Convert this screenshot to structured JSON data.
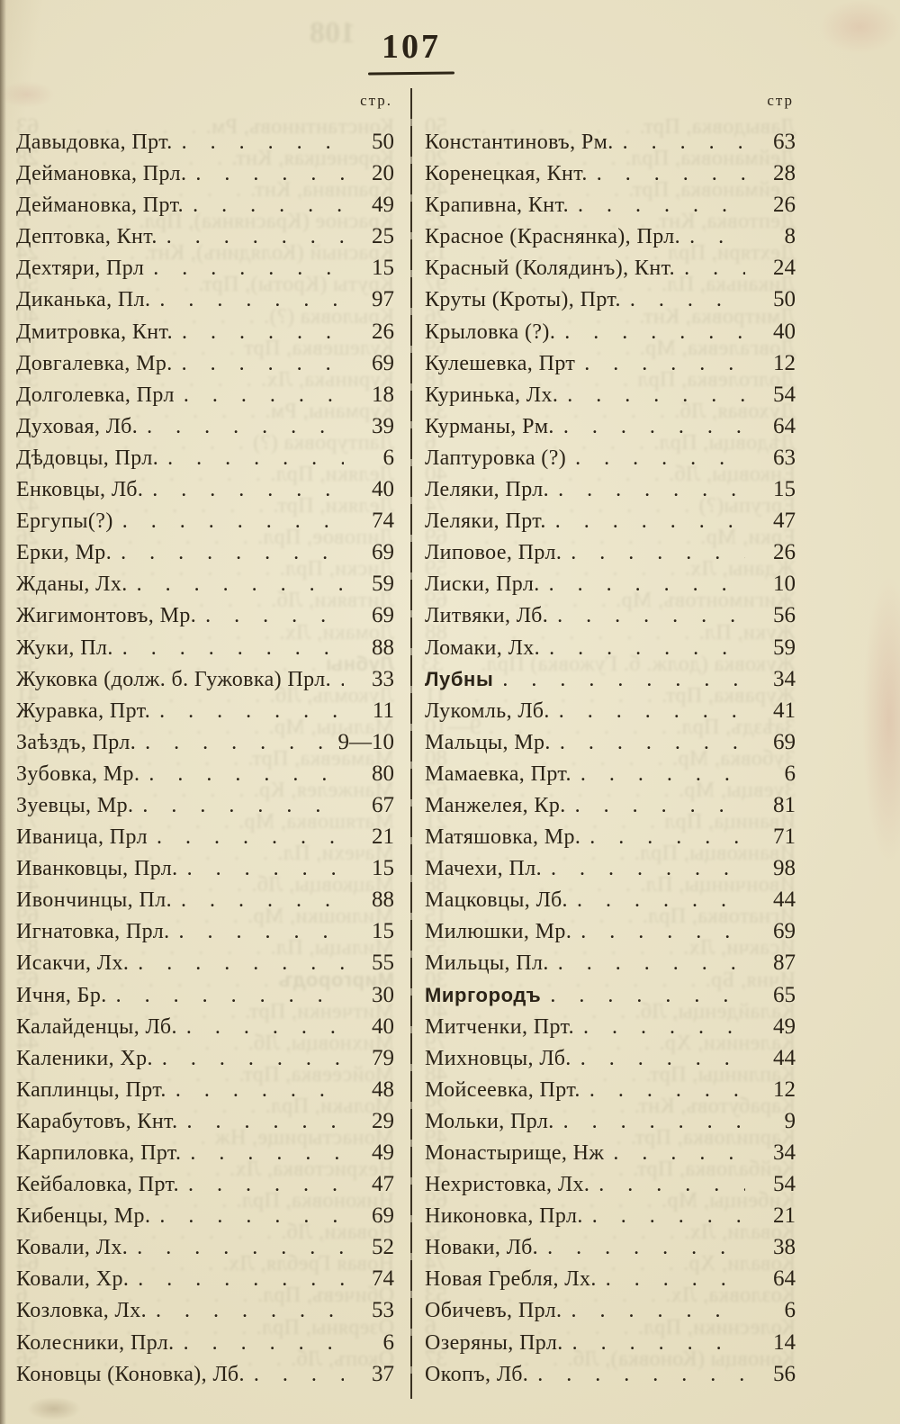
{
  "page": {
    "number": "107",
    "show_through_page_number": "108"
  },
  "colors": {
    "paper": "#e8e1c5",
    "ink": "#2b2317"
  },
  "columns": {
    "left": {
      "header": "стр.",
      "entries": [
        {
          "name": "Давыдовка, Прт.",
          "page": "50"
        },
        {
          "name": "Деймановка, Прл.",
          "page": "20"
        },
        {
          "name": "Деймановка, Прт.",
          "page": "49"
        },
        {
          "name": "Дептовка, Кнт.",
          "page": "25"
        },
        {
          "name": "Дехтяри, Прл",
          "page": "15"
        },
        {
          "name": "Диканька, Пл.",
          "page": "97"
        },
        {
          "name": "Дмитровка, Кнт.",
          "page": "26"
        },
        {
          "name": "Довгалевка, Мр.",
          "page": "69"
        },
        {
          "name": "Долголевка, Прл",
          "page": "18"
        },
        {
          "name": "Духовая, Лб.",
          "page": "39"
        },
        {
          "name": "Дѣдовцы, Прл.",
          "page": "6"
        },
        {
          "name": "Енковцы, Лб.",
          "page": "40"
        },
        {
          "name": "Ергупы(?)",
          "page": "74"
        },
        {
          "name": "Ерки, Мр.",
          "page": "69"
        },
        {
          "name": "Жданы, Лх.",
          "page": "59"
        },
        {
          "name": "Жигимонтовъ, Мр.",
          "page": "69"
        },
        {
          "name": "Жуки, Пл.",
          "page": "88"
        },
        {
          "name": "Жуковка (долж. б. Гужовка) Прл.",
          "page": "33"
        },
        {
          "name": "Журавка, Прт.",
          "page": "11"
        },
        {
          "name": "Заѣздъ, Прл.",
          "page": "9—10"
        },
        {
          "name": "Зубовка, Мр.",
          "page": "80"
        },
        {
          "name": "Зуевцы, Мр.",
          "page": "67"
        },
        {
          "name": "Иваница, Прл",
          "page": "21"
        },
        {
          "name": "Иванковцы, Прл.",
          "page": "15"
        },
        {
          "name": "Ивончинцы, Пл.",
          "page": "88"
        },
        {
          "name": "Игнатовка, Прл.",
          "page": "15"
        },
        {
          "name": "Исакчи, Лх.",
          "page": "55"
        },
        {
          "name": "Ичня, Бр.",
          "page": "30"
        },
        {
          "name": "Калайденцы, Лб.",
          "page": "40"
        },
        {
          "name": "Каленики, Хр.",
          "page": "79"
        },
        {
          "name": "Каплинцы, Прт.",
          "page": "48"
        },
        {
          "name": "Карабутовъ, Кнт.",
          "page": "29"
        },
        {
          "name": "Карпиловка, Прт.",
          "page": "49"
        },
        {
          "name": "Кейбаловка, Прт.",
          "page": "47"
        },
        {
          "name": "Кибенцы, Мр.",
          "page": "69"
        },
        {
          "name": "Ковали, Лх.",
          "page": "52"
        },
        {
          "name": "Ковали, Хр.",
          "page": "74"
        },
        {
          "name": "Козловка, Лх.",
          "page": "53"
        },
        {
          "name": "Колесники, Прл.",
          "page": "6"
        },
        {
          "name": "Коновцы (Коновка), Лб.",
          "page": "37"
        }
      ]
    },
    "right": {
      "header": "стр",
      "entries": [
        {
          "name": "Константиновъ, Рм.",
          "page": "63"
        },
        {
          "name": "Коренецкая, Кнт.",
          "page": "28"
        },
        {
          "name": "Крапивна, Кнт.",
          "page": "26"
        },
        {
          "name": "Красное (Краснянка), Прл.",
          "page": "8"
        },
        {
          "name": "Красный (Колядинъ), Кнт.",
          "page": "24"
        },
        {
          "name": "Круты (Кроты), Прт.",
          "page": "50"
        },
        {
          "name": "Крыловка (?).",
          "page": "40"
        },
        {
          "name": "Кулешевка, Прт",
          "page": "12"
        },
        {
          "name": "Куринька, Лх.",
          "page": "54"
        },
        {
          "name": "Курманы, Рм.",
          "page": "64"
        },
        {
          "name": "Лаптуровка (?)",
          "page": "63"
        },
        {
          "name": "Леляки, Прл.",
          "page": "15"
        },
        {
          "name": "Леляки, Прт.",
          "page": "47"
        },
        {
          "name": "Липовое, Прл.",
          "page": "26"
        },
        {
          "name": "Лиски, Прл.",
          "page": "10"
        },
        {
          "name": "Литвяки, Лб.",
          "page": "56"
        },
        {
          "name": "Ломаки, Лх.",
          "page": "59"
        },
        {
          "name": "Лубны",
          "page": "34",
          "bold": true
        },
        {
          "name": "Лукомль, Лб.",
          "page": "41"
        },
        {
          "name": "Мальцы, Мр.",
          "page": "69"
        },
        {
          "name": "Мамаевка, Прт.",
          "page": "6"
        },
        {
          "name": "Манжелея, Кр.",
          "page": "81"
        },
        {
          "name": "Матяшовка, Мр.",
          "page": "71"
        },
        {
          "name": "Мачехи, Пл.",
          "page": "98"
        },
        {
          "name": "Мацковцы, Лб.",
          "page": "44"
        },
        {
          "name": "Милюшки, Мр.",
          "page": "69"
        },
        {
          "name": "Мильцы, Пл.",
          "page": "87"
        },
        {
          "name": "Миргородъ",
          "page": "65",
          "bold": true
        },
        {
          "name": "Митченки, Прт.",
          "page": "49"
        },
        {
          "name": "Михновцы, Лб.",
          "page": "44"
        },
        {
          "name": "Мойсеевка, Прт.",
          "page": "12"
        },
        {
          "name": "Мольки, Прл.",
          "page": "9"
        },
        {
          "name": "Монастырище, Нж",
          "page": "34"
        },
        {
          "name": "Нехристовка, Лх.",
          "page": "54"
        },
        {
          "name": "Никоновка, Прл.",
          "page": "21"
        },
        {
          "name": "Новаки, Лб.",
          "page": "38"
        },
        {
          "name": "Новая Гребля, Лх.",
          "page": "64"
        },
        {
          "name": "Обичевъ, Прл.",
          "page": "6"
        },
        {
          "name": "Озеряны, Прл.",
          "page": "14"
        },
        {
          "name": "Окопъ, Лб.",
          "page": "56"
        }
      ]
    }
  }
}
